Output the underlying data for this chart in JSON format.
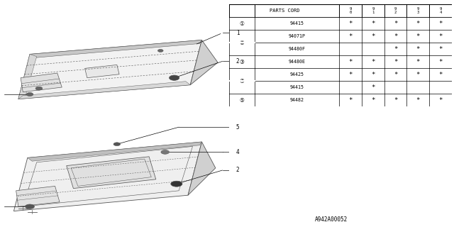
{
  "bg_color": "#ffffff",
  "table_title": "PARTS CORD",
  "col_headers": [
    "9\n0",
    "9\n1",
    "9\n2",
    "9\n3",
    "9\n4"
  ],
  "rows": [
    {
      "num": "1",
      "part": "94415",
      "marks": [
        true,
        true,
        true,
        true,
        true
      ]
    },
    {
      "num": "2",
      "part": "94071P",
      "marks": [
        true,
        true,
        true,
        true,
        true
      ]
    },
    {
      "num": "",
      "part": "94480F",
      "marks": [
        false,
        false,
        true,
        true,
        true
      ]
    },
    {
      "num": "3",
      "part": "94480E",
      "marks": [
        true,
        true,
        true,
        true,
        true
      ]
    },
    {
      "num": "4",
      "part": "94425",
      "marks": [
        true,
        true,
        true,
        true,
        true
      ]
    },
    {
      "num": "",
      "part": "94415",
      "marks": [
        false,
        true,
        false,
        false,
        false
      ]
    },
    {
      "num": "5",
      "part": "94482",
      "marks": [
        true,
        true,
        true,
        true,
        true
      ]
    }
  ],
  "footer": "A942A00052",
  "line_color": "#000000",
  "text_color": "#000000",
  "diagram_line_color": "#555555"
}
